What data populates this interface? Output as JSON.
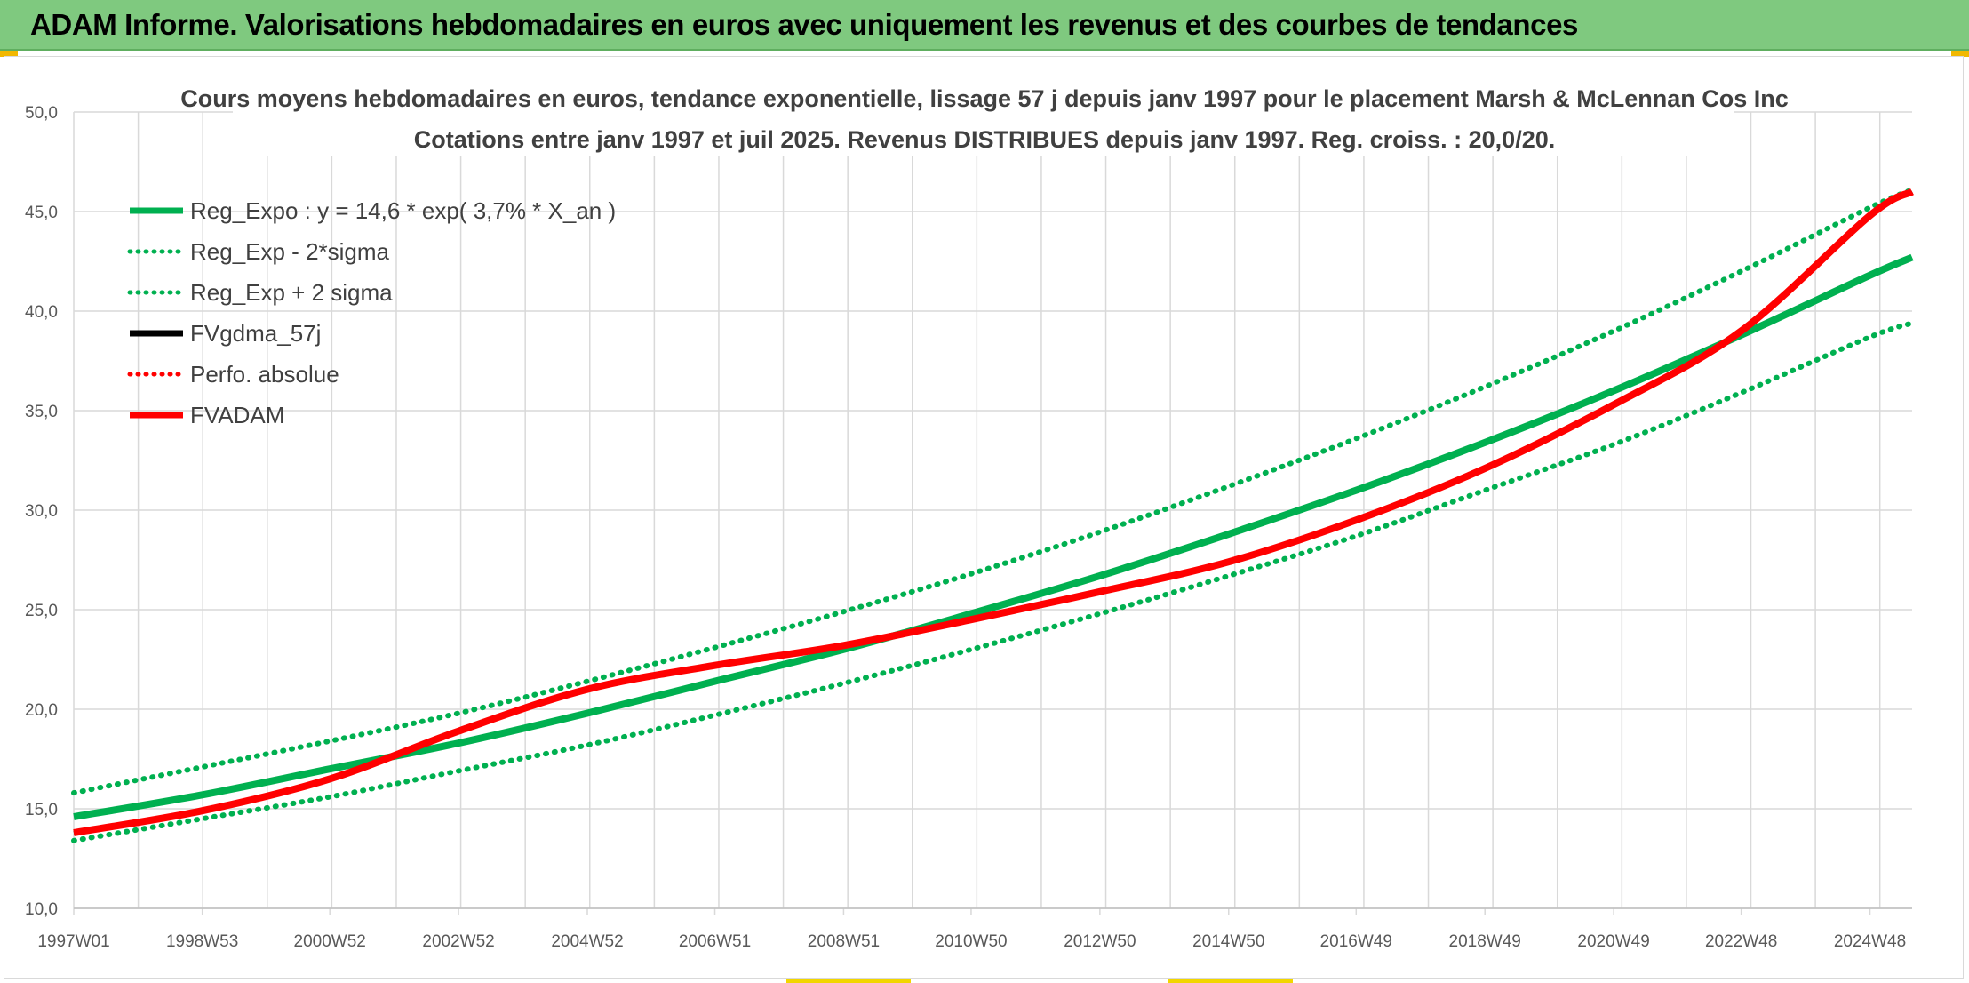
{
  "header": {
    "banner_title": "ADAM Informe. Valorisations hebdomadaires en euros avec uniquement les revenus et des courbes de tendances"
  },
  "colors": {
    "banner": "#7fc97f",
    "regression": "#00b050",
    "fvgdma": "#000000",
    "fvadam": "#ff0000",
    "grid": "#d9d9d9"
  },
  "chart_data": {
    "type": "line",
    "title": "Cours moyens hebdomadaires en euros, tendance exponentielle, lissage 57 j depuis janv 1997 pour le placement Marsh & McLennan Cos Inc",
    "subtitle": "Cotations entre janv 1997 et juil 2025. Revenus DISTRIBUES depuis janv 1997. Reg. croiss. : 20,0/20.",
    "xlabel": "",
    "ylabel": "",
    "ylim": [
      10,
      50
    ],
    "yticks": [
      "10,0",
      "15,0",
      "20,0",
      "25,0",
      "30,0",
      "35,0",
      "40,0",
      "45,0",
      "50,0"
    ],
    "xticks": [
      "1997W01",
      "1998W53",
      "2000W52",
      "2002W52",
      "2004W52",
      "2006W51",
      "2008W51",
      "2010W50",
      "2012W50",
      "2014W50",
      "2016W49",
      "2018W49",
      "2020W49",
      "2022W48",
      "2024W48"
    ],
    "grid": true,
    "legend_position": "top-left",
    "legend": [
      {
        "label": "Reg_Expo : y = 14,6 * exp( 3,7% *  X_an )",
        "color": "#00b050",
        "style": "solid"
      },
      {
        "label": "Reg_Exp - 2*sigma",
        "color": "#00b050",
        "style": "dotted"
      },
      {
        "label": "Reg_Exp + 2 sigma",
        "color": "#00b050",
        "style": "dotted"
      },
      {
        "label": "FVgdma_57j",
        "color": "#000000",
        "style": "solid"
      },
      {
        "label": "Perfo. absolue",
        "color": "#ff0000",
        "style": "dotted"
      },
      {
        "label": "FVADAM",
        "color": "#ff0000",
        "style": "solid"
      }
    ],
    "series": [
      {
        "name": "Reg_Expo : y = 14,6 * exp( 3,7% *  X_an )",
        "x": [
          "1997W01",
          "1998W53",
          "2000W52",
          "2002W52",
          "2004W52",
          "2006W51",
          "2008W51",
          "2010W50",
          "2012W50",
          "2014W50",
          "2016W49",
          "2018W49",
          "2020W49",
          "2022W48",
          "2024W48",
          "2025W30"
        ],
        "values": [
          14.6,
          15.7,
          17.0,
          18.3,
          19.8,
          21.4,
          23.0,
          24.8,
          26.7,
          28.8,
          31.0,
          33.4,
          36.0,
          38.8,
          41.8,
          42.7
        ]
      },
      {
        "name": "Reg_Exp - 2*sigma",
        "x": [
          "1997W01",
          "1998W53",
          "2000W52",
          "2002W52",
          "2004W52",
          "2006W51",
          "2008W51",
          "2010W50",
          "2012W50",
          "2014W50",
          "2016W49",
          "2018W49",
          "2020W49",
          "2022W48",
          "2024W48",
          "2025W30"
        ],
        "values": [
          13.4,
          14.5,
          15.6,
          16.9,
          18.2,
          19.7,
          21.3,
          23.0,
          24.8,
          26.7,
          28.7,
          31.0,
          33.3,
          35.9,
          38.7,
          39.4
        ]
      },
      {
        "name": "Reg_Exp + 2 sigma",
        "x": [
          "1997W01",
          "1998W53",
          "2000W52",
          "2002W52",
          "2004W52",
          "2006W51",
          "2008W51",
          "2010W50",
          "2012W50",
          "2014W50",
          "2016W49",
          "2018W49",
          "2020W49",
          "2022W48",
          "2024W48",
          "2025W30"
        ],
        "values": [
          15.8,
          17.1,
          18.4,
          19.8,
          21.4,
          23.1,
          24.9,
          26.8,
          28.9,
          31.2,
          33.6,
          36.2,
          39.0,
          42.0,
          45.2,
          46.1
        ]
      },
      {
        "name": "FVgdma_57j",
        "x": [
          "1997W01",
          "1998W53",
          "2000W52",
          "2002W52",
          "2004W52",
          "2006W51",
          "2008W51",
          "2010W50",
          "2012W50",
          "2014W50",
          "2016W49",
          "2018W49",
          "2020W49",
          "2022W48",
          "2024W48",
          "2025W30"
        ],
        "values": [
          13.8,
          14.9,
          16.5,
          18.9,
          21.0,
          22.2,
          23.2,
          24.5,
          25.9,
          27.4,
          29.5,
          32.1,
          35.3,
          39.0,
          44.8,
          46.0
        ]
      },
      {
        "name": "Perfo. absolue",
        "x": [
          "1997W01",
          "1998W53",
          "2000W52",
          "2002W52",
          "2004W52",
          "2006W51",
          "2008W51",
          "2010W50",
          "2012W50",
          "2014W50",
          "2016W49",
          "2018W49",
          "2020W49",
          "2022W48",
          "2024W48",
          "2025W30"
        ],
        "values": [
          13.8,
          14.9,
          16.5,
          18.9,
          21.0,
          22.2,
          23.2,
          24.5,
          25.9,
          27.4,
          29.5,
          32.1,
          35.3,
          39.0,
          44.8,
          46.0
        ]
      },
      {
        "name": "FVADAM",
        "x": [
          "1997W01",
          "1998W53",
          "2000W52",
          "2002W52",
          "2004W52",
          "2006W51",
          "2008W51",
          "2010W50",
          "2012W50",
          "2014W50",
          "2016W49",
          "2018W49",
          "2020W49",
          "2022W48",
          "2024W48",
          "2025W30"
        ],
        "values": [
          13.8,
          14.9,
          16.5,
          18.9,
          21.0,
          22.2,
          23.2,
          24.5,
          25.9,
          27.4,
          29.5,
          32.1,
          35.3,
          39.0,
          44.8,
          46.0
        ]
      }
    ]
  }
}
